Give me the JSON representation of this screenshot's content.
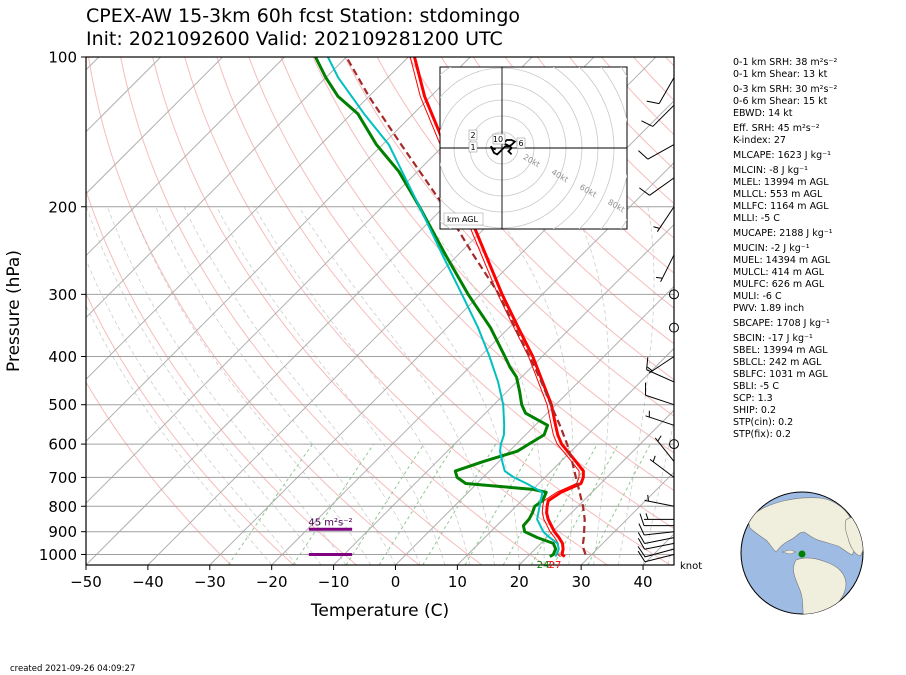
{
  "header": {
    "title_line1": "CPEX-AW 15-3km  60h fcst  Station: stdomingo",
    "title_line2": "Init: 2021092600  Valid: 202109281200 UTC"
  },
  "footer": {
    "created": "created 2021-09-26 04:09:27"
  },
  "params": [
    {
      "text": "0-1 km SRH: 38 m²s⁻²"
    },
    {
      "text": "0-1 km Shear: 13 kt"
    },
    {
      "text": "0-3 km SRH: 30 m²s⁻²",
      "gap": true
    },
    {
      "text": "0-6 km Shear: 15 kt"
    },
    {
      "text": "EBWD: 14 kt"
    },
    {
      "text": "Eff. SRH: 45 m²s⁻²",
      "gap": true
    },
    {
      "text": "K-index: 27"
    },
    {
      "text": "MLCAPE: 1623 J kg⁻¹",
      "gap": true
    },
    {
      "text": "MLCIN: -8 J kg⁻¹",
      "gap": true
    },
    {
      "text": "MLEL: 13994 m AGL"
    },
    {
      "text": "MLLCL: 553 m AGL"
    },
    {
      "text": "MLLFC: 1164 m AGL"
    },
    {
      "text": "MLLI: -5 C"
    },
    {
      "text": "MUCAPE: 2188 J kg⁻¹",
      "gap": true
    },
    {
      "text": "MUCIN: -2 J kg⁻¹",
      "gap": true
    },
    {
      "text": "MUEL: 14394 m AGL"
    },
    {
      "text": "MULCL: 414 m AGL"
    },
    {
      "text": "MULFC: 626 m AGL"
    },
    {
      "text": "MULI: -6 C"
    },
    {
      "text": "PWV: 1.89 inch"
    },
    {
      "text": "SBCAPE: 1708 J kg⁻¹",
      "gap": true
    },
    {
      "text": "SBCIN: -17 J kg⁻¹",
      "gap": true
    },
    {
      "text": "SBEL: 13994 m AGL"
    },
    {
      "text": "SBLCL: 242 m AGL"
    },
    {
      "text": "SBLFC: 1031 m AGL"
    },
    {
      "text": "SBLI: -5 C"
    },
    {
      "text": "SCP: 1.3"
    },
    {
      "text": "SHIP: 0.2"
    },
    {
      "text": "STP(cin): 0.2"
    },
    {
      "text": "STP(fix): 0.2"
    }
  ],
  "chart_data": {
    "type": "line",
    "subtype": "skew-T log-p",
    "xlabel": "Temperature (C)",
    "ylabel": "Pressure (hPa)",
    "xlim": [
      -50,
      45
    ],
    "ylim": [
      1050,
      100
    ],
    "y_scale": "log",
    "x_ticks": [
      -50,
      -40,
      -30,
      -20,
      -10,
      0,
      10,
      20,
      30,
      40
    ],
    "y_ticks": [
      100,
      200,
      300,
      400,
      500,
      600,
      700,
      800,
      900,
      1000
    ],
    "colors": {
      "temperature": "#ff0000",
      "dewpoint": "#008000",
      "wetbulb": "#00c0c0",
      "parcel": "#a52a2a",
      "isobar": "#a0a0a0",
      "isotherm": "#b0b0b0",
      "dry_adiabat": "#f4a0a0",
      "moist_adiabat": "#c0c0c0",
      "mixing_ratio": "#90c890",
      "effective_layer": "#800080"
    },
    "series": [
      {
        "key": "temperature",
        "points": [
          [
            1010,
            26
          ],
          [
            1000,
            25.2
          ],
          [
            975,
            24.5
          ],
          [
            950,
            23.5
          ],
          [
            925,
            22
          ],
          [
            900,
            20.3
          ],
          [
            850,
            17.3
          ],
          [
            825,
            16
          ],
          [
            800,
            15
          ],
          [
            780,
            14.3
          ],
          [
            750,
            15
          ],
          [
            720,
            16.8
          ],
          [
            700,
            16.2
          ],
          [
            680,
            15.2
          ],
          [
            650,
            12.4
          ],
          [
            620,
            9.4
          ],
          [
            600,
            7.3
          ],
          [
            575,
            5.2
          ],
          [
            550,
            3.3
          ],
          [
            500,
            -0.7
          ],
          [
            450,
            -5.8
          ],
          [
            400,
            -11.5
          ],
          [
            350,
            -18.5
          ],
          [
            300,
            -26.5
          ],
          [
            250,
            -35.5
          ],
          [
            200,
            -46.5
          ],
          [
            150,
            -60
          ],
          [
            120,
            -71
          ],
          [
            100,
            -79
          ]
        ]
      },
      {
        "key": "dewpoint",
        "points": [
          [
            1010,
            23.6
          ],
          [
            1000,
            23.8
          ],
          [
            975,
            23.3
          ],
          [
            950,
            22
          ],
          [
            925,
            18.5
          ],
          [
            900,
            15.5
          ],
          [
            875,
            14.3
          ],
          [
            850,
            14.2
          ],
          [
            825,
            13.7
          ],
          [
            800,
            13
          ],
          [
            780,
            13.4
          ],
          [
            750,
            12.6
          ],
          [
            740,
            10
          ],
          [
            720,
            -1.8
          ],
          [
            700,
            -4.2
          ],
          [
            680,
            -5.5
          ],
          [
            650,
            -2.5
          ],
          [
            620,
            1.3
          ],
          [
            600,
            2
          ],
          [
            575,
            3
          ],
          [
            550,
            2
          ],
          [
            520,
            -3.5
          ],
          [
            500,
            -5.5
          ],
          [
            470,
            -8
          ],
          [
            440,
            -10.8
          ],
          [
            420,
            -13.5
          ],
          [
            400,
            -16
          ],
          [
            350,
            -23
          ],
          [
            300,
            -32
          ],
          [
            250,
            -42
          ],
          [
            200,
            -54
          ],
          [
            170,
            -63
          ],
          [
            150,
            -71
          ],
          [
            130,
            -79
          ],
          [
            120,
            -85
          ],
          [
            110,
            -90
          ],
          [
            100,
            -95
          ]
        ]
      },
      {
        "key": "wetbulb",
        "points": [
          [
            1010,
            24.5
          ],
          [
            1000,
            24.3
          ],
          [
            975,
            23.8
          ],
          [
            950,
            22.7
          ],
          [
            925,
            20.5
          ],
          [
            900,
            18.5
          ],
          [
            850,
            15.5
          ],
          [
            800,
            13.8
          ],
          [
            750,
            12
          ],
          [
            720,
            8
          ],
          [
            700,
            5
          ],
          [
            680,
            2.5
          ],
          [
            650,
            0.5
          ],
          [
            620,
            -1.5
          ],
          [
            600,
            -2.5
          ],
          [
            575,
            -3.5
          ],
          [
            550,
            -5
          ],
          [
            500,
            -8.5
          ],
          [
            450,
            -13
          ],
          [
            400,
            -18.5
          ],
          [
            350,
            -25
          ],
          [
            300,
            -33
          ],
          [
            250,
            -42.5
          ],
          [
            200,
            -54
          ],
          [
            150,
            -69
          ],
          [
            130,
            -78
          ],
          [
            110,
            -88
          ],
          [
            100,
            -93
          ]
        ]
      },
      {
        "key": "parcel",
        "points": [
          [
            1000,
            29
          ],
          [
            975,
            27.8
          ],
          [
            950,
            26.8
          ],
          [
            925,
            26
          ],
          [
            900,
            25.1
          ],
          [
            850,
            23.2
          ],
          [
            800,
            20.8
          ],
          [
            750,
            18
          ],
          [
            700,
            15
          ],
          [
            650,
            11.8
          ],
          [
            600,
            8.2
          ],
          [
            550,
            4
          ],
          [
            500,
            -0.8
          ],
          [
            450,
            -6
          ],
          [
            400,
            -12
          ],
          [
            350,
            -19
          ],
          [
            300,
            -27
          ],
          [
            250,
            -37.5
          ],
          [
            200,
            -50
          ],
          [
            150,
            -67
          ],
          [
            120,
            -80
          ],
          [
            100,
            -90
          ]
        ]
      }
    ],
    "effective_layer": {
      "label": "45 m²s⁻²",
      "bottom_hpa": 1000,
      "top_hpa": 890,
      "t_left": -14,
      "t_right": -7
    },
    "surface_values": {
      "temperature": "27",
      "dewpoint": "24",
      "parcel": "?"
    },
    "wind_units": "knot",
    "wind_barbs": [
      {
        "p": 1000,
        "u": -12,
        "v": -3
      },
      {
        "p": 975,
        "u": -11,
        "v": -3
      },
      {
        "p": 950,
        "u": -10,
        "v": -2
      },
      {
        "p": 925,
        "u": -10,
        "v": -2
      },
      {
        "p": 900,
        "u": -9,
        "v": -1
      },
      {
        "p": 875,
        "u": -8,
        "v": 0
      },
      {
        "p": 850,
        "u": -7,
        "v": 0
      },
      {
        "p": 800,
        "u": -5,
        "v": 1
      },
      {
        "p": 700,
        "u": -4,
        "v": 3
      },
      {
        "p": 650,
        "u": -4,
        "v": 5
      },
      {
        "p": 600,
        "u": 0,
        "v": 0
      },
      {
        "p": 550,
        "u": -6,
        "v": 2
      },
      {
        "p": 500,
        "u": -9,
        "v": 3
      },
      {
        "p": 450,
        "u": -9,
        "v": 4
      },
      {
        "p": 400,
        "u": -6,
        "v": -4
      },
      {
        "p": 350,
        "u": 0,
        "v": 0
      },
      {
        "p": 300,
        "u": 0,
        "v": 0
      },
      {
        "p": 250,
        "u": -3,
        "v": -6
      },
      {
        "p": 200,
        "u": -4,
        "v": -6
      },
      {
        "p": 175,
        "u": -7,
        "v": -5
      },
      {
        "p": 150,
        "u": -9,
        "v": -5
      },
      {
        "p": 125,
        "u": -7,
        "v": -7
      },
      {
        "p": 110,
        "u": -4,
        "v": -7
      }
    ],
    "hodograph": {
      "label": "km AGL",
      "ring_labels": [
        "20kt",
        "40kt",
        "60kt",
        "80kt"
      ],
      "height_labels": [
        {
          "text": "1",
          "u": -7,
          "v": 0
        },
        {
          "text": "2",
          "u": -7,
          "v": 3
        },
        {
          "text": "10",
          "u": -1,
          "v": 2
        },
        {
          "text": "6",
          "u": 5,
          "v": 1
        }
      ],
      "trace": [
        [
          -4,
          -1
        ],
        [
          -6,
          0
        ],
        [
          -7,
          1
        ],
        [
          -6,
          -1
        ],
        [
          -5,
          -3
        ],
        [
          -3,
          -4
        ],
        [
          -1,
          -2
        ],
        [
          1,
          0
        ],
        [
          2,
          1
        ],
        [
          4,
          1
        ],
        [
          6,
          2
        ],
        [
          8,
          4
        ],
        [
          6,
          5
        ],
        [
          3,
          5
        ],
        [
          1,
          3
        ],
        [
          3,
          2
        ],
        [
          5,
          1
        ],
        [
          6,
          0
        ],
        [
          5,
          -1
        ],
        [
          4,
          -2
        ],
        [
          5,
          -3
        ],
        [
          6,
          -4
        ]
      ]
    },
    "locator_map": {
      "station_marker_color": "#008000",
      "ocean_color": "#9ebbe4",
      "land_color": "#f0eedc"
    }
  }
}
